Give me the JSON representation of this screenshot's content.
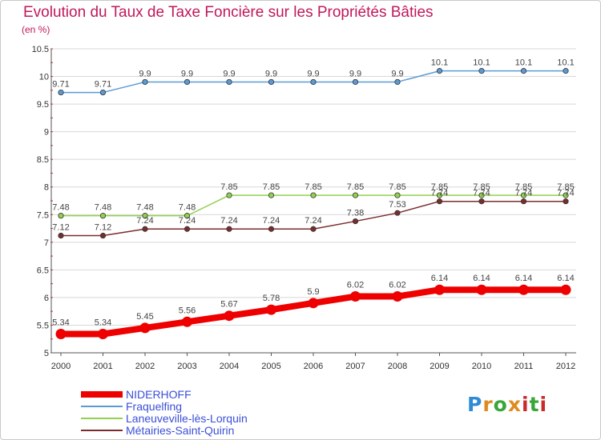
{
  "header": {
    "title": "Evolution du Taux de Taxe Foncière sur les Propriétés Bâties",
    "subtitle": "(en %)"
  },
  "colors": {
    "title": "#c2185b",
    "grid": "#d8d8d8",
    "legend_text": "#3b4fd8"
  },
  "logo": {
    "text": "Proxiti",
    "colors": [
      "#2e8bd6",
      "#e08a1e",
      "#3aa63a",
      "#cc2a2a"
    ]
  },
  "chart_data": {
    "type": "line",
    "x": [
      "2000",
      "2001",
      "2002",
      "2003",
      "2004",
      "2005",
      "2006",
      "2007",
      "2008",
      "2009",
      "2010",
      "2011",
      "2012"
    ],
    "ylim": [
      5,
      10.5
    ],
    "yticks": [
      "5",
      "5.5",
      "6",
      "6.5",
      "7",
      "7.5",
      "8",
      "8.5",
      "9",
      "9.5",
      "10",
      "10.5"
    ],
    "grid": "horizontal",
    "legend_position": "bottom-left",
    "series": [
      {
        "name": "NIDERHOFF",
        "color": "#ee0000",
        "width": 8,
        "values": [
          5.34,
          5.34,
          5.45,
          5.56,
          5.67,
          5.78,
          5.9,
          6.02,
          6.02,
          6.14,
          6.14,
          6.14,
          6.14
        ],
        "labels": [
          "5.34",
          "5.34",
          "5.45",
          "5.56",
          "5.67",
          "5.78",
          "5.9",
          "6.02",
          "6.02",
          "6.14",
          "6.14",
          "6.14",
          "6.14"
        ]
      },
      {
        "name": "Fraquelfing",
        "color": "#5b9bd5",
        "width": 1.5,
        "values": [
          9.71,
          9.71,
          9.9,
          9.9,
          9.9,
          9.9,
          9.9,
          9.9,
          9.9,
          10.1,
          10.1,
          10.1,
          10.1
        ],
        "labels": [
          "9.71",
          "9.71",
          "9.9",
          "9.9",
          "9.9",
          "9.9",
          "9.9",
          "9.9",
          "9.9",
          "10.1",
          "10.1",
          "10.1",
          "10.1"
        ]
      },
      {
        "name": "Laneuveville-lès-Lorquin",
        "color": "#92d050",
        "width": 1.5,
        "values": [
          7.48,
          7.48,
          7.48,
          7.48,
          7.85,
          7.85,
          7.85,
          7.85,
          7.85,
          7.85,
          7.85,
          7.85,
          7.85
        ],
        "labels": [
          "7.48",
          "7.48",
          "7.48",
          "7.48",
          "7.85",
          "7.85",
          "7.85",
          "7.85",
          "7.85",
          "7.85",
          "7.85",
          "7.85",
          "7.85"
        ]
      },
      {
        "name": "Métairies-Saint-Quirin",
        "color": "#7b2c2c",
        "width": 1.5,
        "values": [
          7.12,
          7.12,
          7.24,
          7.24,
          7.24,
          7.24,
          7.24,
          7.38,
          7.53,
          7.74,
          7.74,
          7.74,
          7.74
        ],
        "labels": [
          "7.12",
          "7.12",
          "7.24",
          "7.24",
          "7.24",
          "7.24",
          "7.24",
          "7.38",
          "7.53",
          "7.74",
          "7.74",
          "7.74",
          "7.74"
        ]
      }
    ]
  }
}
